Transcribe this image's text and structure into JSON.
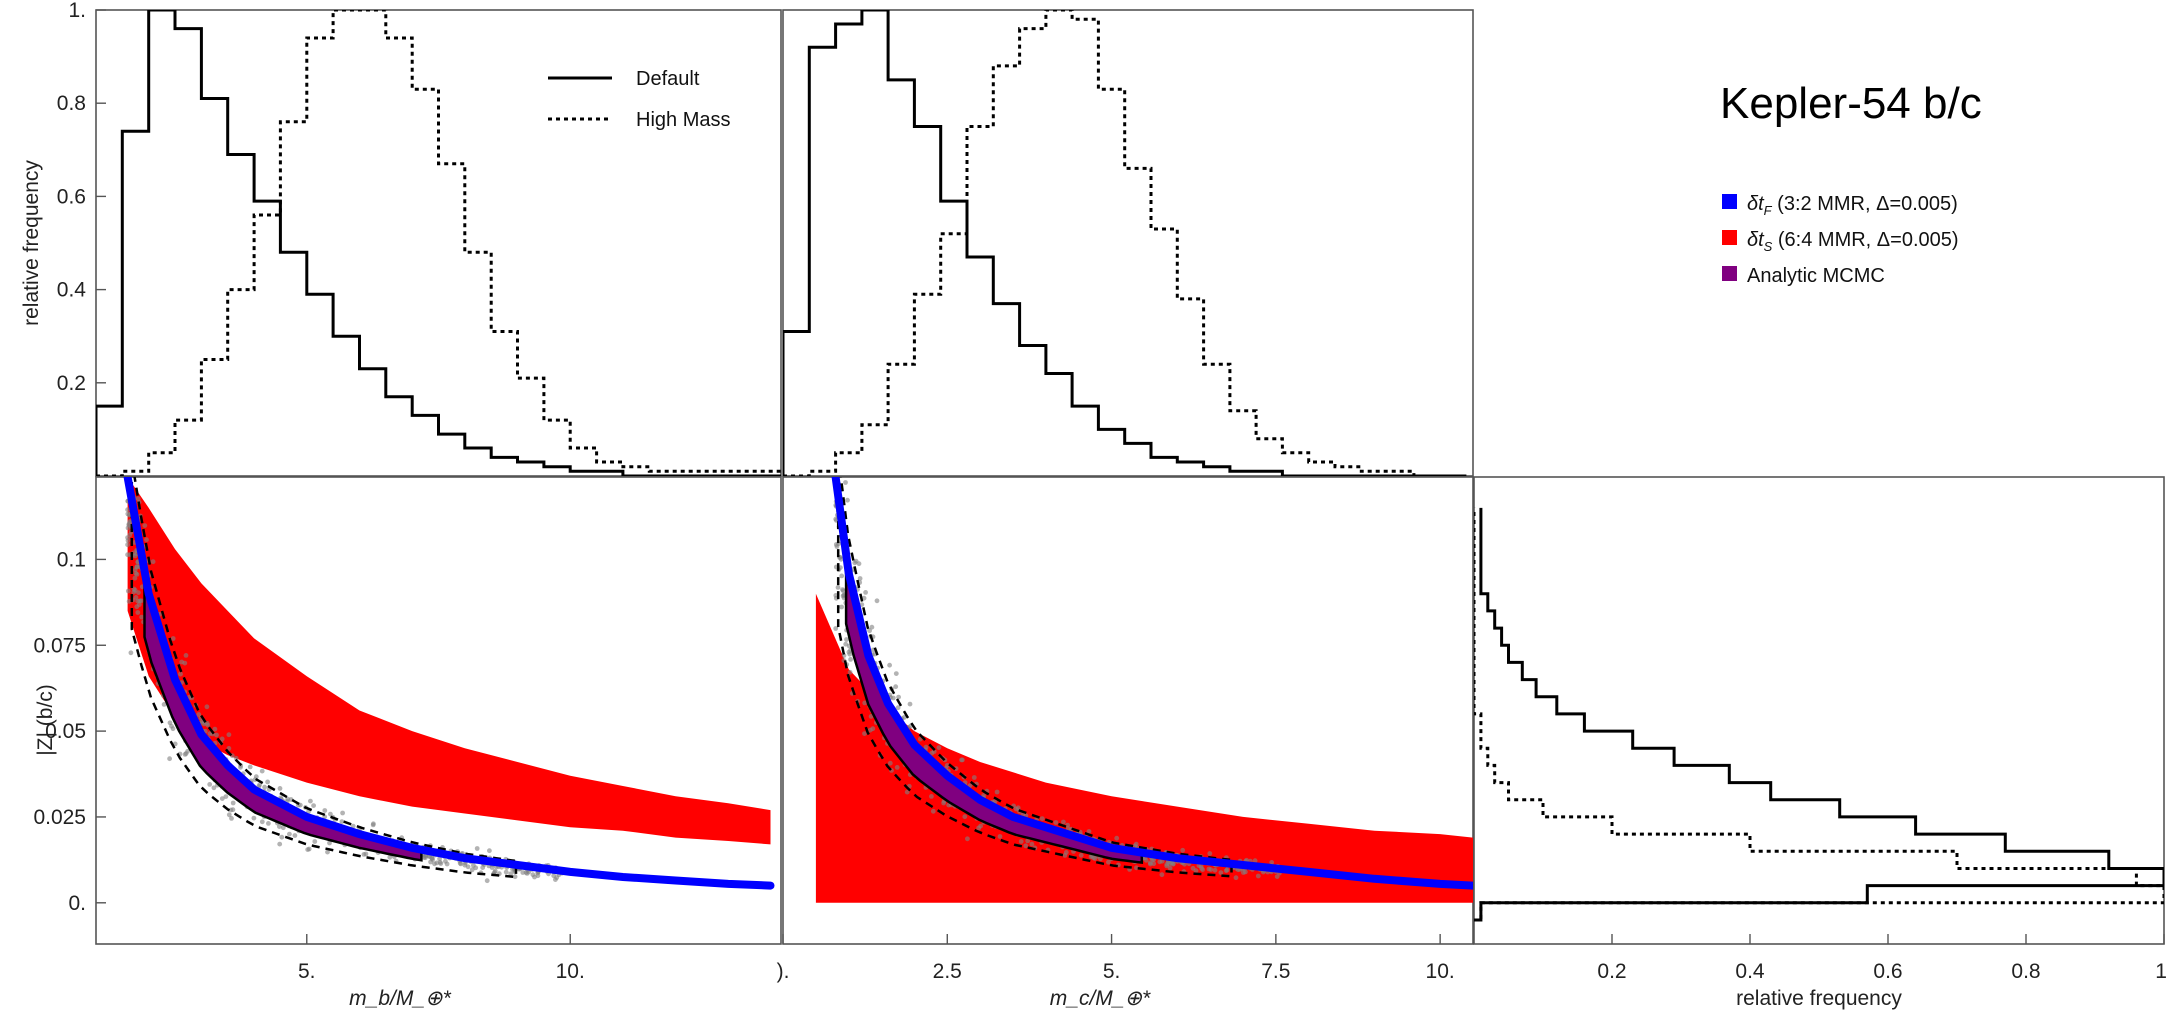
{
  "figure": {
    "title": "Kepler-54 b/c",
    "legend_lines": [
      {
        "label": "Default",
        "style": "solid"
      },
      {
        "label": "High Mass",
        "style": "dotted"
      }
    ],
    "legend_fills": [
      {
        "symbol": "δt",
        "sub": "F",
        "label": " (3:2 MMR, Δ=0.005)",
        "color": "#0000ff"
      },
      {
        "symbol": "δt",
        "sub": "S",
        "label": " (6:4 MMR, Δ=0.005)",
        "color": "#ff0000"
      },
      {
        "symbol": "",
        "sub": "",
        "label": "Analytic MCMC",
        "color": "#800080"
      }
    ],
    "colors": {
      "blue": "#0000ff",
      "red": "#ff0000",
      "purple": "#800080",
      "gray": "#808080"
    }
  },
  "chart_data": [
    {
      "id": "hist_mb",
      "type": "line",
      "step": true,
      "ylabel": "relative frequency",
      "xlim": [
        1.0,
        14.0
      ],
      "ylim": [
        0,
        1.0
      ],
      "yticks": [
        0.2,
        0.4,
        0.6,
        0.8,
        1.0
      ],
      "ytick_labels": [
        "0.2",
        "0.4",
        "0.6",
        "0.8",
        "1."
      ],
      "bin_edges": [
        1.0,
        1.5,
        2.0,
        2.5,
        3.0,
        3.5,
        4.0,
        4.5,
        5.0,
        5.5,
        6.0,
        6.5,
        7.0,
        7.5,
        8.0,
        8.5,
        9.0,
        9.5,
        10.0,
        10.5,
        11.0,
        11.5,
        12.0,
        12.5,
        13.0,
        13.5,
        14.0
      ],
      "series": [
        {
          "name": "Default",
          "style": "solid",
          "values": [
            0.15,
            0.74,
            1.0,
            0.96,
            0.81,
            0.69,
            0.59,
            0.48,
            0.39,
            0.3,
            0.23,
            0.17,
            0.13,
            0.09,
            0.06,
            0.04,
            0.03,
            0.02,
            0.01,
            0.01,
            0.0,
            0.0,
            0.0,
            0.0,
            0.0,
            0.0
          ]
        },
        {
          "name": "High Mass",
          "style": "dotted",
          "values": [
            0.0,
            0.01,
            0.05,
            0.12,
            0.25,
            0.4,
            0.56,
            0.76,
            0.94,
            1.0,
            1.0,
            0.94,
            0.83,
            0.67,
            0.48,
            0.31,
            0.21,
            0.12,
            0.06,
            0.03,
            0.02,
            0.01,
            0.01,
            0.01,
            0.01,
            0.01
          ]
        }
      ]
    },
    {
      "id": "hist_mc",
      "type": "line",
      "step": true,
      "xlim": [
        0.0,
        10.5
      ],
      "ylim": [
        0,
        1.0
      ],
      "bin_edges": [
        0.0,
        0.4,
        0.8,
        1.2,
        1.6,
        2.0,
        2.4,
        2.8,
        3.2,
        3.6,
        4.0,
        4.4,
        4.8,
        5.2,
        5.6,
        6.0,
        6.4,
        6.8,
        7.2,
        7.6,
        8.0,
        8.4,
        8.8,
        9.2,
        9.6,
        10.0,
        10.4
      ],
      "series": [
        {
          "name": "Default",
          "style": "solid",
          "values": [
            0.31,
            0.92,
            0.97,
            1.0,
            0.85,
            0.75,
            0.59,
            0.47,
            0.37,
            0.28,
            0.22,
            0.15,
            0.1,
            0.07,
            0.04,
            0.03,
            0.02,
            0.01,
            0.01,
            0.0,
            0.0,
            0.0,
            0.0,
            0.0,
            0.0,
            0.0
          ]
        },
        {
          "name": "High Mass",
          "style": "dotted",
          "values": [
            0.0,
            0.01,
            0.05,
            0.11,
            0.24,
            0.39,
            0.52,
            0.75,
            0.88,
            0.96,
            1.0,
            0.98,
            0.83,
            0.66,
            0.53,
            0.38,
            0.24,
            0.14,
            0.08,
            0.05,
            0.03,
            0.02,
            0.01,
            0.01,
            0.0,
            0.0
          ]
        }
      ]
    },
    {
      "id": "scatter_mb",
      "type": "scatter",
      "xlabel": "m_b/M_⊕*",
      "ylabel": "|Z| (b/c)",
      "xlim": [
        1.0,
        14.0
      ],
      "ylim": [
        -0.012,
        0.124
      ],
      "xticks": [
        5,
        10
      ],
      "xtick_labels": [
        "5.",
        "10."
      ],
      "yticks": [
        0.0,
        0.025,
        0.05,
        0.075,
        0.1
      ],
      "ytick_labels": [
        "0.",
        "0.025",
        "0.05",
        "0.075",
        "0.1"
      ],
      "blue_curve": {
        "name": "δt_F (3:2 MMR, Δ=0.005)",
        "x": [
          1.6,
          2.0,
          2.5,
          3.0,
          3.5,
          4.0,
          5.0,
          6.0,
          7.0,
          8.0,
          9.0,
          10.0,
          11.0,
          12.0,
          13.0,
          13.8
        ],
        "y": [
          0.124,
          0.09,
          0.065,
          0.049,
          0.04,
          0.033,
          0.025,
          0.02,
          0.016,
          0.013,
          0.011,
          0.009,
          0.0075,
          0.0065,
          0.0055,
          0.005
        ]
      },
      "red_band": {
        "name": "δt_S (6:4 MMR, Δ=0.005)",
        "x": [
          1.6,
          2.0,
          2.5,
          3.0,
          3.5,
          4.0,
          5.0,
          6.0,
          7.0,
          8.0,
          9.0,
          10.0,
          11.0,
          12.0,
          13.0,
          13.8
        ],
        "upper": [
          0.124,
          0.115,
          0.103,
          0.093,
          0.085,
          0.077,
          0.066,
          0.056,
          0.05,
          0.045,
          0.041,
          0.037,
          0.034,
          0.031,
          0.029,
          0.027
        ],
        "lower": [
          0.085,
          0.066,
          0.054,
          0.047,
          0.043,
          0.04,
          0.035,
          0.031,
          0.028,
          0.026,
          0.024,
          0.022,
          0.021,
          0.019,
          0.018,
          0.017
        ]
      }
    },
    {
      "id": "scatter_mc",
      "type": "scatter",
      "xlabel": "m_c/M_⊕*",
      "xlim": [
        0.0,
        10.5
      ],
      "ylim": [
        -0.012,
        0.124
      ],
      "xticks": [
        0,
        2.5,
        5.0,
        7.5,
        10.0
      ],
      "xtick_labels": [
        ").",
        "2.5",
        "5.",
        "7.5",
        "10."
      ],
      "blue_curve": {
        "name": "δt_F (3:2 MMR, Δ=0.005)",
        "x": [
          0.8,
          1.0,
          1.3,
          1.6,
          2.0,
          2.5,
          3.0,
          3.5,
          4.0,
          5.0,
          6.0,
          7.0,
          8.0,
          9.0,
          10.0,
          10.5
        ],
        "y": [
          0.124,
          0.096,
          0.072,
          0.058,
          0.046,
          0.037,
          0.03,
          0.025,
          0.022,
          0.016,
          0.013,
          0.011,
          0.009,
          0.007,
          0.0055,
          0.005
        ]
      },
      "red_band": {
        "name": "δt_S (6:4 MMR, Δ=0.005)",
        "x": [
          0.5,
          1.0,
          1.5,
          2.0,
          2.5,
          3.0,
          3.5,
          4.0,
          5.0,
          6.0,
          7.0,
          8.0,
          9.0,
          10.0,
          10.5
        ],
        "upper": [
          0.09,
          0.068,
          0.058,
          0.05,
          0.045,
          0.041,
          0.038,
          0.035,
          0.031,
          0.028,
          0.025,
          0.023,
          0.021,
          0.02,
          0.019
        ],
        "lower": [
          0.0,
          0.0,
          0.0,
          0.0,
          0.0,
          0.0,
          0.0,
          0.0,
          0.0,
          0.0,
          0.0,
          0.0,
          0.0,
          0.0,
          0.0
        ]
      }
    },
    {
      "id": "hist_z",
      "type": "line",
      "step": true,
      "orientation": "horizontal",
      "xlabel": "relative frequency",
      "xlim": [
        0,
        1.0
      ],
      "ylim": [
        -0.012,
        0.124
      ],
      "xticks": [
        0.2,
        0.4,
        0.6,
        0.8,
        1.0
      ],
      "xtick_labels": [
        "0.2",
        "0.4",
        "0.6",
        "0.8",
        "1."
      ],
      "bin_edges": [
        -0.005,
        0.0,
        0.005,
        0.01,
        0.015,
        0.02,
        0.025,
        0.03,
        0.035,
        0.04,
        0.045,
        0.05,
        0.055,
        0.06,
        0.065,
        0.07,
        0.075,
        0.08,
        0.085,
        0.09,
        0.095,
        0.1,
        0.105,
        0.11,
        0.115
      ],
      "series": [
        {
          "name": "Default",
          "style": "solid",
          "values": [
            0.01,
            0.57,
            1.0,
            0.92,
            0.77,
            0.64,
            0.53,
            0.43,
            0.37,
            0.29,
            0.23,
            0.16,
            0.12,
            0.09,
            0.07,
            0.05,
            0.04,
            0.03,
            0.02,
            0.01,
            0.01,
            0.01,
            0.01,
            0.01
          ]
        },
        {
          "name": "High Mass",
          "style": "dotted",
          "values": [
            0.01,
            1.0,
            0.96,
            0.7,
            0.4,
            0.2,
            0.1,
            0.05,
            0.03,
            0.02,
            0.01,
            0.01,
            0.0,
            0.0,
            0.0,
            0.0,
            0.0,
            0.0,
            0.0,
            0.0,
            0.0,
            0.0,
            0.0,
            0.0
          ]
        }
      ]
    }
  ]
}
